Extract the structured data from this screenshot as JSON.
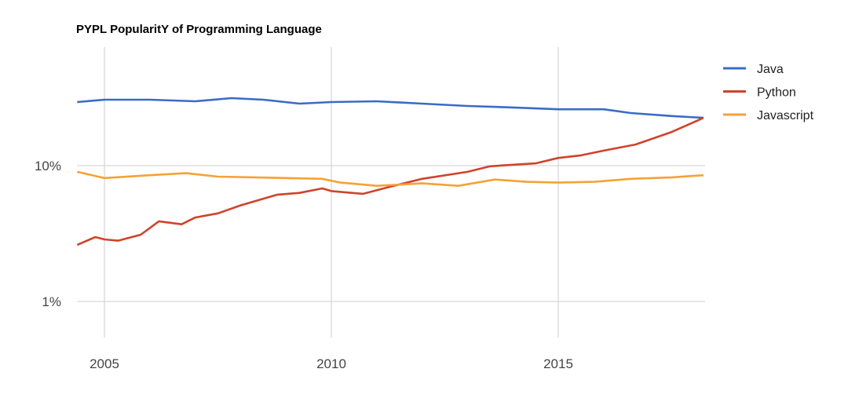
{
  "chart_data": {
    "type": "line",
    "title": "PYPL PopularitY of Programming Language",
    "xlabel": "",
    "ylabel": "",
    "y_scale": "log",
    "ylim": [
      0.55,
      100
    ],
    "xlim": [
      2004.4,
      2018.2
    ],
    "x_ticks": [
      {
        "value": 2005,
        "label": "2005"
      },
      {
        "value": 2010,
        "label": "2010"
      },
      {
        "value": 2015,
        "label": "2015"
      }
    ],
    "y_ticks": [
      {
        "value": 10,
        "label": "10%"
      },
      {
        "value": 1,
        "label": "1%"
      }
    ],
    "grid": true,
    "legend_position": "right",
    "series": [
      {
        "name": "Java",
        "color": "#3b6bc6",
        "points": [
          [
            2004.4,
            29.4
          ],
          [
            2005,
            30.6
          ],
          [
            2006,
            30.6
          ],
          [
            2007,
            29.8
          ],
          [
            2007.8,
            31.4
          ],
          [
            2008.5,
            30.6
          ],
          [
            2009.3,
            28.6
          ],
          [
            2010,
            29.4
          ],
          [
            2011,
            29.8
          ],
          [
            2012,
            28.6
          ],
          [
            2013,
            27.5
          ],
          [
            2014,
            26.8
          ],
          [
            2015,
            26.0
          ],
          [
            2016,
            26.0
          ],
          [
            2016.6,
            24.4
          ],
          [
            2017.5,
            23.2
          ],
          [
            2018.2,
            22.5
          ]
        ]
      },
      {
        "name": "Python",
        "color": "#d0432b",
        "points": [
          [
            2004.4,
            2.61
          ],
          [
            2004.8,
            2.98
          ],
          [
            2005,
            2.86
          ],
          [
            2005.3,
            2.8
          ],
          [
            2005.8,
            3.1
          ],
          [
            2006.2,
            3.89
          ],
          [
            2006.7,
            3.7
          ],
          [
            2007,
            4.15
          ],
          [
            2007.5,
            4.45
          ],
          [
            2008,
            5.1
          ],
          [
            2008.8,
            6.1
          ],
          [
            2009.3,
            6.3
          ],
          [
            2009.8,
            6.8
          ],
          [
            2010,
            6.5
          ],
          [
            2010.7,
            6.2
          ],
          [
            2011.3,
            7.0
          ],
          [
            2012,
            8.0
          ],
          [
            2013,
            9.0
          ],
          [
            2013.5,
            9.9
          ],
          [
            2014.5,
            10.4
          ],
          [
            2015,
            11.4
          ],
          [
            2015.5,
            11.9
          ],
          [
            2016,
            12.9
          ],
          [
            2016.7,
            14.3
          ],
          [
            2017.5,
            17.7
          ],
          [
            2018.2,
            22.5
          ]
        ]
      },
      {
        "name": "Javascript",
        "color": "#f5a234",
        "points": [
          [
            2004.4,
            9.0
          ],
          [
            2005,
            8.1
          ],
          [
            2006,
            8.5
          ],
          [
            2006.8,
            8.8
          ],
          [
            2007.5,
            8.3
          ],
          [
            2008.3,
            8.2
          ],
          [
            2009,
            8.1
          ],
          [
            2009.8,
            8.0
          ],
          [
            2010.2,
            7.5
          ],
          [
            2011,
            7.1
          ],
          [
            2012,
            7.4
          ],
          [
            2012.8,
            7.1
          ],
          [
            2013.6,
            7.9
          ],
          [
            2014.3,
            7.6
          ],
          [
            2015,
            7.5
          ],
          [
            2015.8,
            7.6
          ],
          [
            2016.6,
            8.0
          ],
          [
            2017.5,
            8.2
          ],
          [
            2018.2,
            8.5
          ]
        ]
      }
    ]
  }
}
